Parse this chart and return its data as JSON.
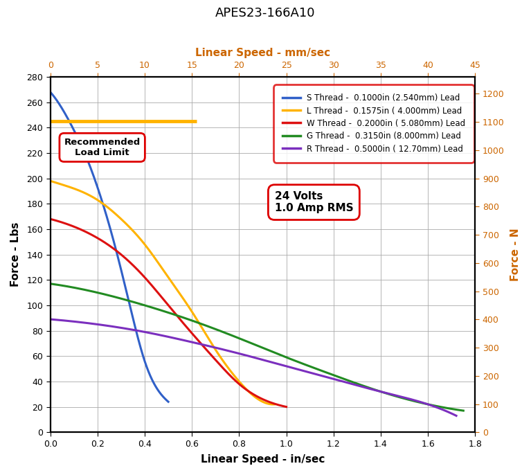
{
  "title": "APES23-166A10",
  "subtitle_top": "Linear Speed - mm/sec",
  "xlabel_bottom": "Linear Speed - in/sec",
  "ylabel_left": "Force - Lbs",
  "ylabel_right": "Force - N",
  "voltage_label": "24 Volts\n1.0 Amp RMS",
  "recommended_load_label": "Recommended\nLoad Limit",
  "recommended_load_lbs": 245,
  "xlim_in": [
    0.0,
    1.8
  ],
  "ylim_lbs": [
    0,
    280
  ],
  "xlim_mm": [
    0,
    45
  ],
  "ylim_n": [
    0,
    1260
  ],
  "xticks_in": [
    0.0,
    0.2,
    0.4,
    0.6,
    0.8,
    1.0,
    1.2,
    1.4,
    1.6,
    1.8
  ],
  "yticks_lbs": [
    0,
    20,
    40,
    60,
    80,
    100,
    120,
    140,
    160,
    180,
    200,
    220,
    240,
    260,
    280
  ],
  "xticks_mm": [
    0,
    5,
    10,
    15,
    20,
    25,
    30,
    35,
    40,
    45
  ],
  "yticks_n": [
    0,
    100,
    200,
    300,
    400,
    500,
    600,
    700,
    800,
    900,
    1000,
    1100,
    1200
  ],
  "title_color": "#000000",
  "top_xlabel_color": "#cc6600",
  "axis_label_color": "#000000",
  "tick_color": "#000000",
  "top_tick_color": "#cc6600",
  "right_tick_color": "#cc6600",
  "grid_color": "#aaaaaa",
  "background_color": "#ffffff",
  "curves": [
    {
      "label": "S Thread -  0.1000in (2.540mm) Lead",
      "color": "#3060c8",
      "x": [
        0.0,
        0.05,
        0.1,
        0.15,
        0.2,
        0.25,
        0.3,
        0.35,
        0.4,
        0.45,
        0.5
      ],
      "y": [
        268,
        255,
        238,
        218,
        193,
        163,
        128,
        90,
        56,
        35,
        24
      ]
    },
    {
      "label": "L Thread -  0.1575in ( 4.000mm) Lead",
      "color": "#FFB300",
      "x": [
        0.0,
        0.1,
        0.2,
        0.3,
        0.4,
        0.5,
        0.6,
        0.7,
        0.8,
        0.9,
        0.95
      ],
      "y": [
        198,
        192,
        183,
        168,
        148,
        122,
        95,
        65,
        40,
        24,
        22
      ]
    },
    {
      "label": "W Thread -  0.2000in ( 5.080mm) Lead",
      "color": "#dd1111",
      "x": [
        0.0,
        0.1,
        0.2,
        0.3,
        0.4,
        0.5,
        0.6,
        0.7,
        0.8,
        0.9,
        1.0
      ],
      "y": [
        168,
        162,
        153,
        140,
        122,
        100,
        78,
        57,
        38,
        26,
        20
      ]
    },
    {
      "label": "G Thread -  0.3150in (8.000mm) Lead",
      "color": "#228B22",
      "x": [
        0.0,
        0.2,
        0.4,
        0.6,
        0.8,
        1.0,
        1.2,
        1.4,
        1.6,
        1.75
      ],
      "y": [
        117,
        110,
        100,
        88,
        74,
        59,
        45,
        32,
        22,
        17
      ]
    },
    {
      "label": "R Thread -  0.5000in ( 12.70mm) Lead",
      "color": "#7B2FBE",
      "x": [
        0.0,
        0.2,
        0.4,
        0.6,
        0.8,
        1.0,
        1.2,
        1.4,
        1.6,
        1.72
      ],
      "y": [
        89,
        85,
        79,
        71,
        62,
        52,
        42,
        32,
        22,
        13
      ]
    }
  ]
}
